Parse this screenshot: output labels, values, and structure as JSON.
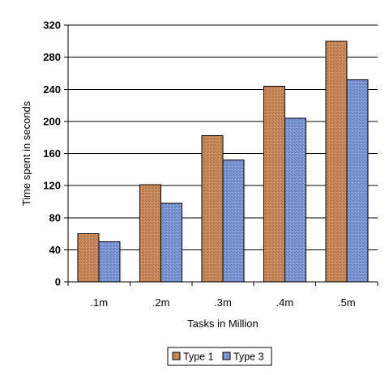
{
  "chart_data": {
    "type": "bar",
    "title": "",
    "xlabel": "Tasks in Million",
    "ylabel": "Time spent in seconds",
    "categories": [
      ".1m",
      ".2m",
      ".3m",
      ".4m",
      ".5m"
    ],
    "series": [
      {
        "name": "Type 1",
        "values": [
          60,
          121,
          182,
          244,
          300
        ],
        "color": "#c8895a"
      },
      {
        "name": "Type 3",
        "values": [
          50,
          98,
          152,
          204,
          252
        ],
        "color": "#7d95d0"
      }
    ],
    "ylim": [
      0,
      320
    ],
    "yticks": [
      "0",
      "40",
      "80",
      "120",
      "160",
      "200",
      "240",
      "280",
      "320"
    ],
    "grid": true,
    "legend_position": "bottom-center",
    "plot_background": "#ffffff",
    "gridline_color": "#000000"
  }
}
